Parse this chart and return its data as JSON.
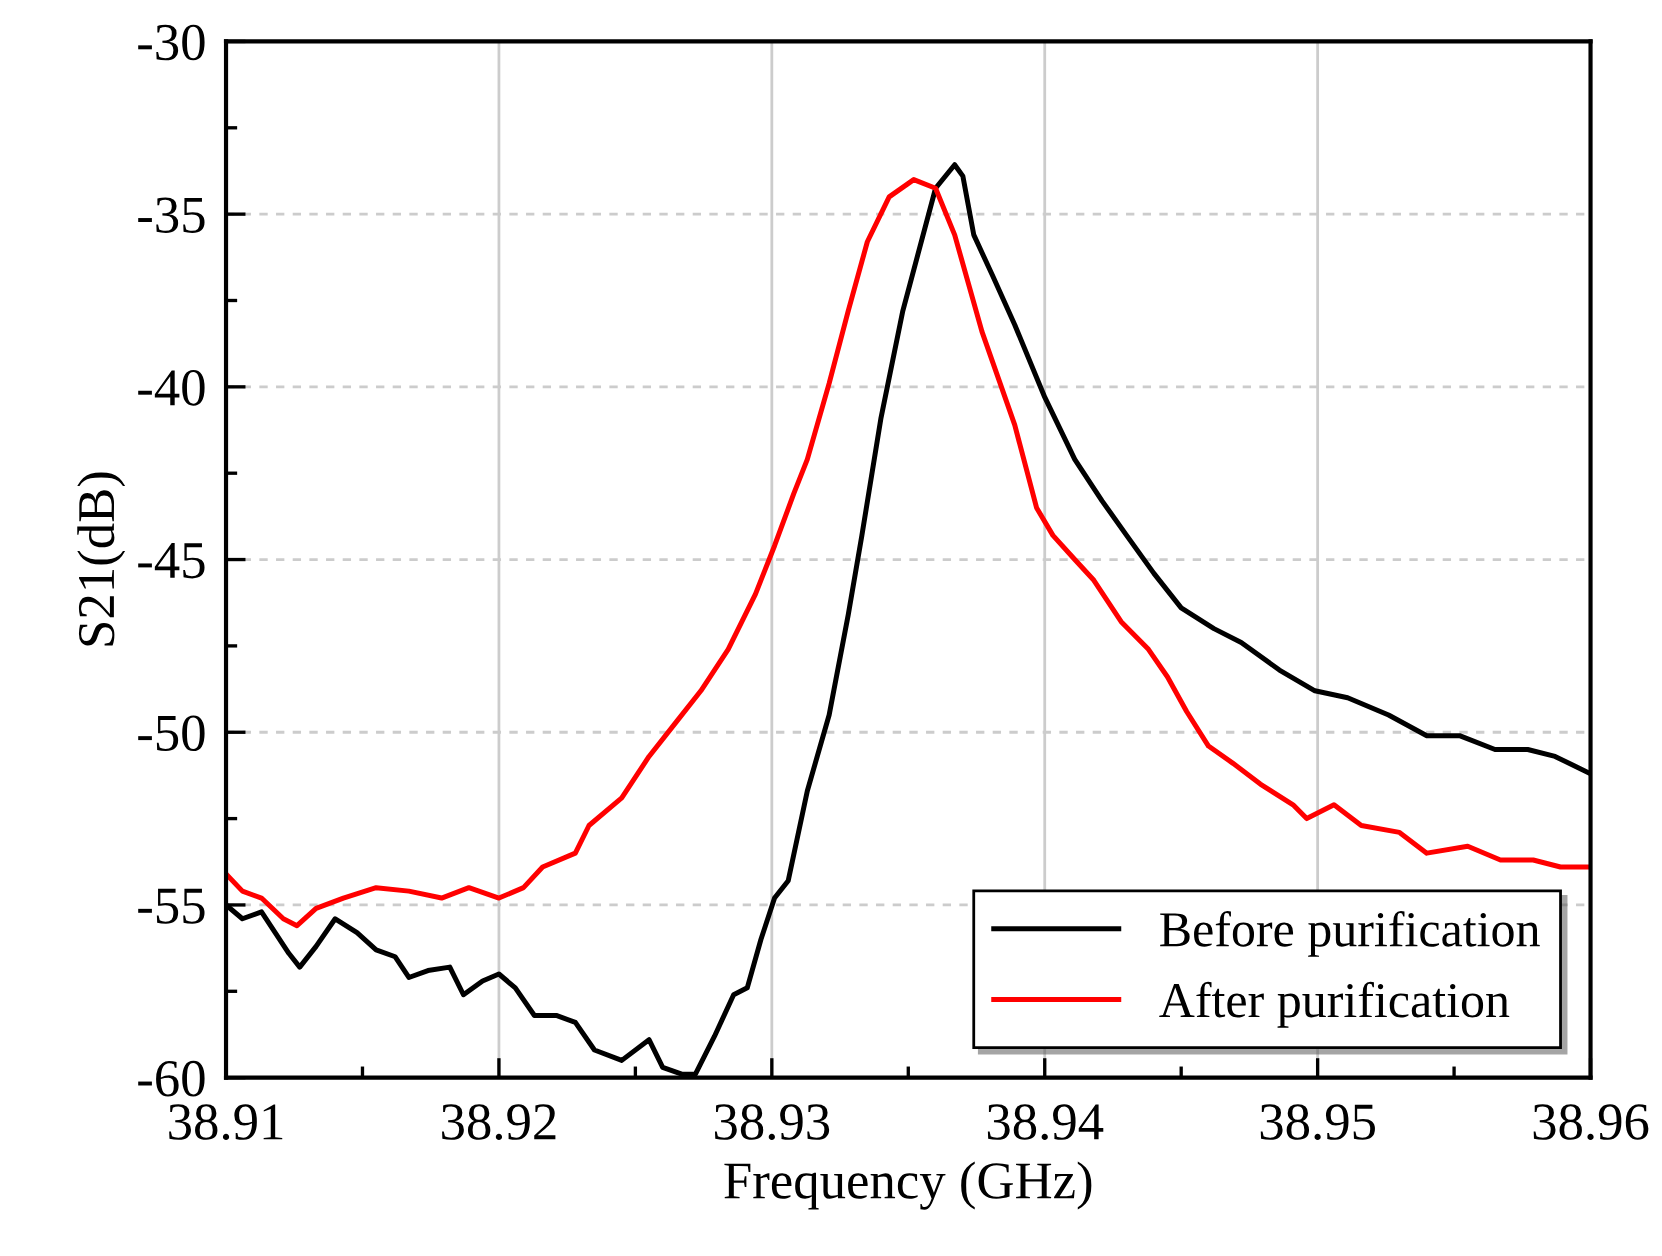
{
  "chart_data": {
    "type": "line",
    "xlabel": "Frequency (GHz)",
    "ylabel": "S21(dB)",
    "xlim": [
      38.91,
      38.96
    ],
    "xticks": [
      38.91,
      38.92,
      38.93,
      38.94,
      38.95,
      38.96
    ],
    "ylim": [
      -60,
      -30
    ],
    "yticks": [
      -60,
      -55,
      -50,
      -45,
      -40,
      -35,
      -30
    ],
    "grid": true,
    "legend": "bottom right",
    "line_style": "solid",
    "series": [
      {
        "name": "Before purification",
        "color": "#000000",
        "x": [
          38.91,
          38.9106,
          38.9113,
          38.9118,
          38.9123,
          38.9127,
          38.9133,
          38.914,
          38.9148,
          38.9155,
          38.9162,
          38.9167,
          38.9174,
          38.9182,
          38.9187,
          38.9194,
          38.92,
          38.9206,
          38.9213,
          38.9221,
          38.9228,
          38.9235,
          38.9245,
          38.9255,
          38.926,
          38.9267,
          38.9272,
          38.9279,
          38.9286,
          38.9291,
          38.9296,
          38.9301,
          38.9306,
          38.9313,
          38.9321,
          38.9328,
          38.9333,
          38.934,
          38.9348,
          38.936,
          38.9367,
          38.937,
          38.9374,
          38.9381,
          38.9389,
          38.94,
          38.9411,
          38.9421,
          38.943,
          38.944,
          38.945,
          38.9462,
          38.9472,
          38.9486,
          38.9499,
          38.9511,
          38.9526,
          38.954,
          38.9552,
          38.9565,
          38.9577,
          38.9587,
          38.96
        ],
        "values": [
          -55.0,
          -55.4,
          -55.2,
          -55.8,
          -56.4,
          -56.8,
          -56.2,
          -55.4,
          -55.8,
          -56.3,
          -56.5,
          -57.1,
          -56.9,
          -56.8,
          -57.6,
          -57.2,
          -57.0,
          -57.4,
          -58.2,
          -58.2,
          -58.4,
          -59.2,
          -59.5,
          -58.9,
          -59.7,
          -59.9,
          -59.9,
          -58.8,
          -57.6,
          -57.4,
          -56.0,
          -54.8,
          -54.3,
          -51.7,
          -49.5,
          -46.6,
          -44.3,
          -40.9,
          -37.8,
          -34.25,
          -33.57,
          -33.9,
          -35.6,
          -36.8,
          -38.2,
          -40.3,
          -42.1,
          -43.3,
          -44.3,
          -45.4,
          -46.4,
          -47.0,
          -47.4,
          -48.2,
          -48.8,
          -49.0,
          -49.5,
          -50.1,
          -50.1,
          -50.5,
          -50.5,
          -50.7,
          -51.2
        ]
      },
      {
        "name": "After purification",
        "color": "#ff0000",
        "x": [
          38.91,
          38.9106,
          38.9113,
          38.9121,
          38.9126,
          38.9133,
          38.9143,
          38.9155,
          38.9167,
          38.9179,
          38.9189,
          38.92,
          38.9209,
          38.9216,
          38.9228,
          38.9233,
          38.9245,
          38.9255,
          38.9265,
          38.9274,
          38.9284,
          38.9294,
          38.9301,
          38.9308,
          38.9313,
          38.9321,
          38.9328,
          38.9335,
          38.9343,
          38.9352,
          38.936,
          38.9367,
          38.9377,
          38.9389,
          38.9397,
          38.9403,
          38.9411,
          38.9418,
          38.9428,
          38.9438,
          38.9445,
          38.9452,
          38.946,
          38.9469,
          38.9479,
          38.9491,
          38.9496,
          38.9506,
          38.9516,
          38.953,
          38.954,
          38.9555,
          38.9567,
          38.9579,
          38.9589,
          38.96
        ],
        "values": [
          -54.1,
          -54.6,
          -54.8,
          -55.4,
          -55.6,
          -55.1,
          -54.8,
          -54.5,
          -54.6,
          -54.8,
          -54.5,
          -54.8,
          -54.5,
          -53.9,
          -53.5,
          -52.7,
          -51.9,
          -50.7,
          -49.7,
          -48.8,
          -47.6,
          -46.0,
          -44.6,
          -43.1,
          -42.1,
          -39.9,
          -37.8,
          -35.8,
          -34.5,
          -34.0,
          -34.25,
          -35.6,
          -38.4,
          -41.1,
          -43.5,
          -44.3,
          -45.0,
          -45.6,
          -46.8,
          -47.6,
          -48.4,
          -49.4,
          -50.4,
          -50.9,
          -51.5,
          -52.1,
          -52.5,
          -52.1,
          -52.7,
          -52.9,
          -53.5,
          -53.3,
          -53.7,
          -53.7,
          -53.9,
          -53.9
        ]
      }
    ]
  }
}
